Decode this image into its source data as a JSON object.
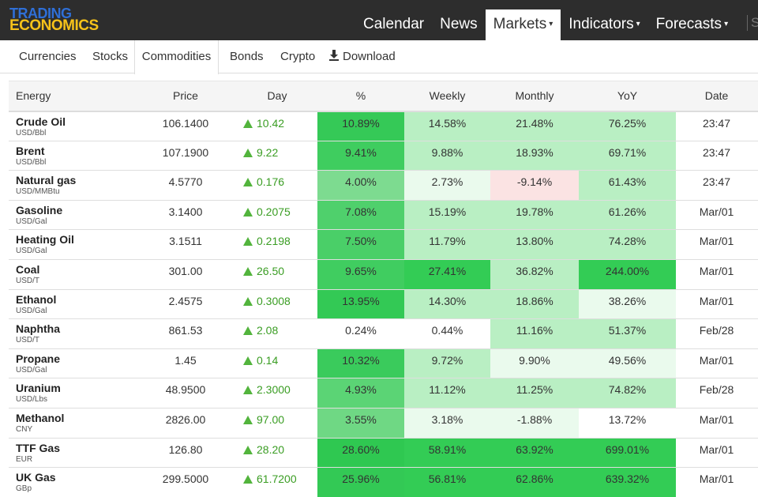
{
  "logo": {
    "line1": "TRADING",
    "line2": "ECONOMICS"
  },
  "nav": {
    "items": [
      {
        "label": "Calendar",
        "dropdown": false,
        "active": false
      },
      {
        "label": "News",
        "dropdown": false,
        "active": false
      },
      {
        "label": "Markets",
        "dropdown": true,
        "active": true
      },
      {
        "label": "Indicators",
        "dropdown": true,
        "active": false
      },
      {
        "label": "Forecasts",
        "dropdown": true,
        "active": false
      }
    ],
    "search_stub": "S"
  },
  "subtabs": {
    "currencies": "Currencies",
    "stocks": "Stocks",
    "commodities": "Commodities",
    "bonds": "Bonds",
    "crypto": "Crypto",
    "download": "Download"
  },
  "table": {
    "headers": [
      "Energy",
      "Price",
      "Day",
      "%",
      "Weekly",
      "Monthly",
      "YoY",
      "Date"
    ],
    "colors": {
      "strong_green": "#33cc55",
      "light_green": "#b9efc3",
      "pale_green": "#eafaed",
      "pale_red": "#fbe3e3"
    },
    "rows": [
      {
        "name": "Crude Oil",
        "unit": "USD/Bbl",
        "price": "106.1400",
        "day": "10.42",
        "pct": "10.89%",
        "weekly": "14.58%",
        "monthly": "21.48%",
        "yoy": "76.25%",
        "date": "23:47"
      },
      {
        "name": "Brent",
        "unit": "USD/Bbl",
        "price": "107.1900",
        "day": "9.22",
        "pct": "9.41%",
        "weekly": "9.88%",
        "monthly": "18.93%",
        "yoy": "69.71%",
        "date": "23:47"
      },
      {
        "name": "Natural gas",
        "unit": "USD/MMBtu",
        "price": "4.5770",
        "day": "0.176",
        "pct": "4.00%",
        "weekly": "2.73%",
        "monthly": "-9.14%",
        "yoy": "61.43%",
        "date": "23:47"
      },
      {
        "name": "Gasoline",
        "unit": "USD/Gal",
        "price": "3.1400",
        "day": "0.2075",
        "pct": "7.08%",
        "weekly": "15.19%",
        "monthly": "19.78%",
        "yoy": "61.26%",
        "date": "Mar/01"
      },
      {
        "name": "Heating Oil",
        "unit": "USD/Gal",
        "price": "3.1511",
        "day": "0.2198",
        "pct": "7.50%",
        "weekly": "11.79%",
        "monthly": "13.80%",
        "yoy": "74.28%",
        "date": "Mar/01"
      },
      {
        "name": "Coal",
        "unit": "USD/T",
        "price": "301.00",
        "day": "26.50",
        "pct": "9.65%",
        "weekly": "27.41%",
        "monthly": "36.82%",
        "yoy": "244.00%",
        "date": "Mar/01"
      },
      {
        "name": "Ethanol",
        "unit": "USD/Gal",
        "price": "2.4575",
        "day": "0.3008",
        "pct": "13.95%",
        "weekly": "14.30%",
        "monthly": "18.86%",
        "yoy": "38.26%",
        "date": "Mar/01"
      },
      {
        "name": "Naphtha",
        "unit": "USD/T",
        "price": "861.53",
        "day": "2.08",
        "pct": "0.24%",
        "weekly": "0.44%",
        "monthly": "11.16%",
        "yoy": "51.37%",
        "date": "Feb/28"
      },
      {
        "name": "Propane",
        "unit": "USD/Gal",
        "price": "1.45",
        "day": "0.14",
        "pct": "10.32%",
        "weekly": "9.72%",
        "monthly": "9.90%",
        "yoy": "49.56%",
        "date": "Mar/01"
      },
      {
        "name": "Uranium",
        "unit": "USD/Lbs",
        "price": "48.9500",
        "day": "2.3000",
        "pct": "4.93%",
        "weekly": "11.12%",
        "monthly": "11.25%",
        "yoy": "74.82%",
        "date": "Feb/28"
      },
      {
        "name": "Methanol",
        "unit": "CNY",
        "price": "2826.00",
        "day": "97.00",
        "pct": "3.55%",
        "weekly": "3.18%",
        "monthly": "-1.88%",
        "yoy": "13.72%",
        "date": "Mar/01"
      },
      {
        "name": "TTF Gas",
        "unit": "EUR",
        "price": "126.80",
        "day": "28.20",
        "pct": "28.60%",
        "weekly": "58.91%",
        "monthly": "63.92%",
        "yoy": "699.01%",
        "date": "Mar/01"
      },
      {
        "name": "UK Gas",
        "unit": "GBp",
        "price": "299.5000",
        "day": "61.7200",
        "pct": "25.96%",
        "weekly": "56.81%",
        "monthly": "62.86%",
        "yoy": "639.32%",
        "date": "Mar/01"
      }
    ]
  }
}
